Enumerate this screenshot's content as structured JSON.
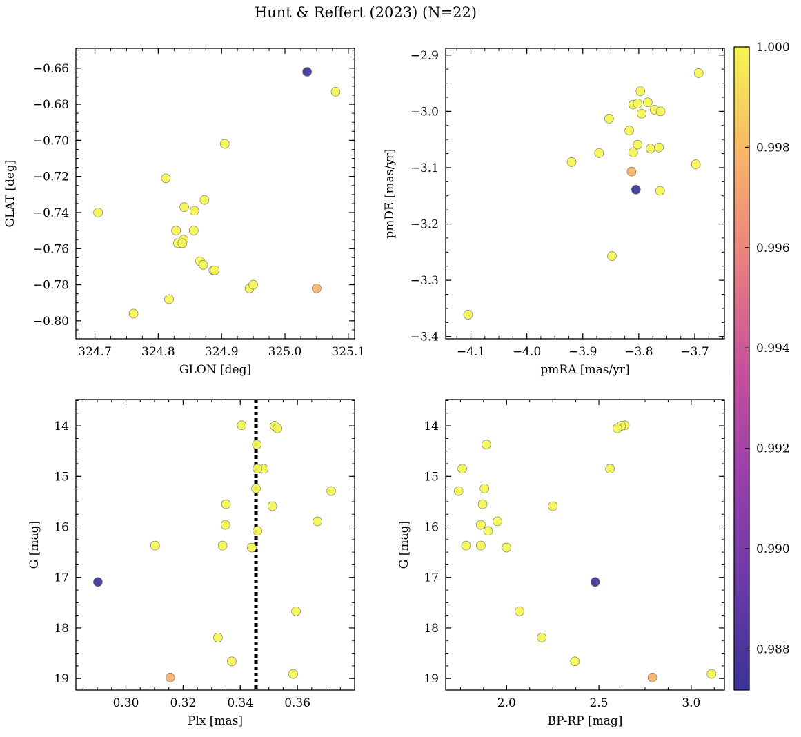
{
  "figure": {
    "title": "Hunt & Reffert (2023) (N=22)"
  },
  "colorbar": {
    "min": 0.98718,
    "max": 1.0,
    "ticks": [
      0.988,
      0.99,
      0.992,
      0.994,
      0.996,
      0.998,
      1.0
    ],
    "tick_labels": [
      "0.988",
      "0.990",
      "0.992",
      "0.994",
      "0.996",
      "0.998",
      "1.000"
    ],
    "colormap": "plasma",
    "colors": [
      "#3b3496",
      "#6b3aa8",
      "#9a3fab",
      "#c5509b",
      "#e87f7f",
      "#f8b468",
      "#f5f551"
    ]
  },
  "chart_data": [
    {
      "type": "scatter",
      "xlabel": "GLON [deg]",
      "ylabel": "GLAT [deg]",
      "xlim": [
        324.67,
        325.11
      ],
      "ylim": [
        -0.81,
        -0.649
      ],
      "xticks": [
        324.7,
        324.8,
        324.9,
        325.0,
        325.1
      ],
      "xtick_labels": [
        "324.7",
        "324.8",
        "324.9",
        "325.0",
        "325.1"
      ],
      "yticks": [
        -0.66,
        -0.68,
        -0.7,
        -0.72,
        -0.74,
        -0.76,
        -0.78,
        -0.8
      ],
      "ytick_labels": [
        "−0.66",
        "−0.68",
        "−0.70",
        "−0.72",
        "−0.74",
        "−0.76",
        "−0.78",
        "−0.80"
      ],
      "x": [
        324.705,
        325.08,
        324.905,
        324.812,
        324.841,
        324.873,
        324.857,
        324.828,
        324.856,
        324.84,
        324.831,
        324.838,
        324.866,
        324.871,
        324.887,
        324.889,
        324.944,
        324.95,
        324.817,
        324.761,
        325.05,
        325.035
      ],
      "y": [
        -0.74,
        -0.673,
        -0.702,
        -0.721,
        -0.737,
        -0.733,
        -0.739,
        -0.75,
        -0.75,
        -0.755,
        -0.757,
        -0.757,
        -0.767,
        -0.769,
        -0.772,
        -0.772,
        -0.782,
        -0.78,
        -0.788,
        -0.796,
        -0.782,
        -0.662
      ],
      "prob": [
        1,
        1,
        1,
        1,
        1,
        1,
        1,
        1,
        1,
        1,
        1,
        1,
        1,
        1,
        1,
        1,
        1,
        1,
        1,
        1,
        0.9978,
        0.9872
      ]
    },
    {
      "type": "scatter",
      "xlabel": "pmRA [mas/yr]",
      "ylabel": "pmDE [mas/yr]",
      "xlim": [
        -4.145,
        -3.647
      ],
      "ylim": [
        -3.404,
        -2.888
      ],
      "xticks": [
        -4.1,
        -4.0,
        -3.9,
        -3.8,
        -3.7
      ],
      "xtick_labels": [
        "−4.1",
        "−4.0",
        "−3.9",
        "−3.8",
        "−3.7"
      ],
      "yticks": [
        -2.9,
        -3.0,
        -3.1,
        -3.2,
        -3.3,
        -3.4
      ],
      "ytick_labels": [
        "−2.9",
        "−3.0",
        "−3.1",
        "−3.2",
        "−3.3",
        "−3.4"
      ],
      "x": [
        -3.693,
        -3.797,
        -3.81,
        -3.802,
        -3.784,
        -3.772,
        -3.761,
        -3.795,
        -3.853,
        -3.817,
        -3.802,
        -3.779,
        -3.764,
        -3.81,
        -3.871,
        -3.92,
        -3.698,
        -3.762,
        -3.848,
        -4.105,
        -3.813,
        -3.805
      ],
      "y": [
        -2.932,
        -2.964,
        -2.988,
        -2.986,
        -2.984,
        -2.997,
        -3.0,
        -3.004,
        -3.013,
        -3.034,
        -3.059,
        -3.066,
        -3.064,
        -3.073,
        -3.074,
        -3.09,
        -3.094,
        -3.141,
        -3.257,
        -3.361,
        -3.107,
        -3.139
      ],
      "prob": [
        1,
        1,
        1,
        1,
        1,
        1,
        1,
        1,
        1,
        1,
        1,
        1,
        1,
        1,
        1,
        1,
        1,
        1,
        1,
        1,
        0.9978,
        0.9872
      ]
    },
    {
      "type": "scatter",
      "xlabel": "Plx [mas]",
      "ylabel": "G [mag]",
      "xlim": [
        0.2825,
        0.38
      ],
      "ylim": [
        19.23,
        13.48
      ],
      "invert_y": true,
      "vline": {
        "x": 0.3455,
        "style": "dotted",
        "color": "#000000"
      },
      "xticks": [
        0.3,
        0.32,
        0.34,
        0.36
      ],
      "xtick_labels": [
        "0.30",
        "0.32",
        "0.34",
        "0.36"
      ],
      "yticks": [
        14,
        15,
        16,
        17,
        18,
        19
      ],
      "ytick_labels": [
        "14",
        "15",
        "16",
        "17",
        "18",
        "19"
      ],
      "x": [
        0.3405,
        0.352,
        0.353,
        0.3458,
        0.3482,
        0.346,
        0.3455,
        0.3718,
        0.335,
        0.3512,
        0.367,
        0.3348,
        0.346,
        0.3102,
        0.3338,
        0.344,
        0.3595,
        0.3322,
        0.337,
        0.3585,
        0.3155,
        0.2902
      ],
      "y": [
        13.99,
        14.0,
        14.05,
        14.37,
        14.85,
        14.85,
        15.24,
        15.29,
        15.55,
        15.59,
        15.89,
        15.96,
        16.08,
        16.37,
        16.37,
        16.41,
        17.67,
        18.19,
        18.66,
        18.91,
        18.98,
        17.09
      ],
      "prob": [
        1,
        1,
        1,
        1,
        1,
        1,
        1,
        1,
        1,
        1,
        1,
        1,
        1,
        1,
        1,
        1,
        1,
        1,
        1,
        1,
        0.9978,
        0.9872
      ]
    },
    {
      "type": "scatter",
      "xlabel": "BP-RP [mag]",
      "ylabel": "G [mag]",
      "xlim": [
        1.67,
        3.18
      ],
      "ylim": [
        19.23,
        13.48
      ],
      "invert_y": true,
      "xticks": [
        2.0,
        2.5,
        3.0
      ],
      "xtick_labels": [
        "2.0",
        "2.5",
        "3.0"
      ],
      "yticks": [
        14,
        15,
        16,
        17,
        18,
        19
      ],
      "ytick_labels": [
        "14",
        "15",
        "16",
        "17",
        "18",
        "19"
      ],
      "x": [
        2.64,
        2.62,
        2.6,
        1.89,
        1.76,
        2.56,
        1.88,
        1.74,
        1.87,
        2.25,
        1.95,
        1.86,
        1.9,
        1.78,
        1.86,
        2.0,
        2.07,
        2.19,
        2.37,
        3.11,
        2.79,
        2.48
      ],
      "y": [
        13.99,
        14.0,
        14.05,
        14.37,
        14.85,
        14.85,
        15.24,
        15.29,
        15.55,
        15.59,
        15.89,
        15.96,
        16.08,
        16.37,
        16.37,
        16.41,
        17.67,
        18.19,
        18.66,
        18.91,
        18.98,
        17.09
      ],
      "prob": [
        1,
        1,
        1,
        1,
        1,
        1,
        1,
        1,
        1,
        1,
        1,
        1,
        1,
        1,
        1,
        1,
        1,
        1,
        1,
        1,
        0.9978,
        0.9872
      ]
    }
  ]
}
